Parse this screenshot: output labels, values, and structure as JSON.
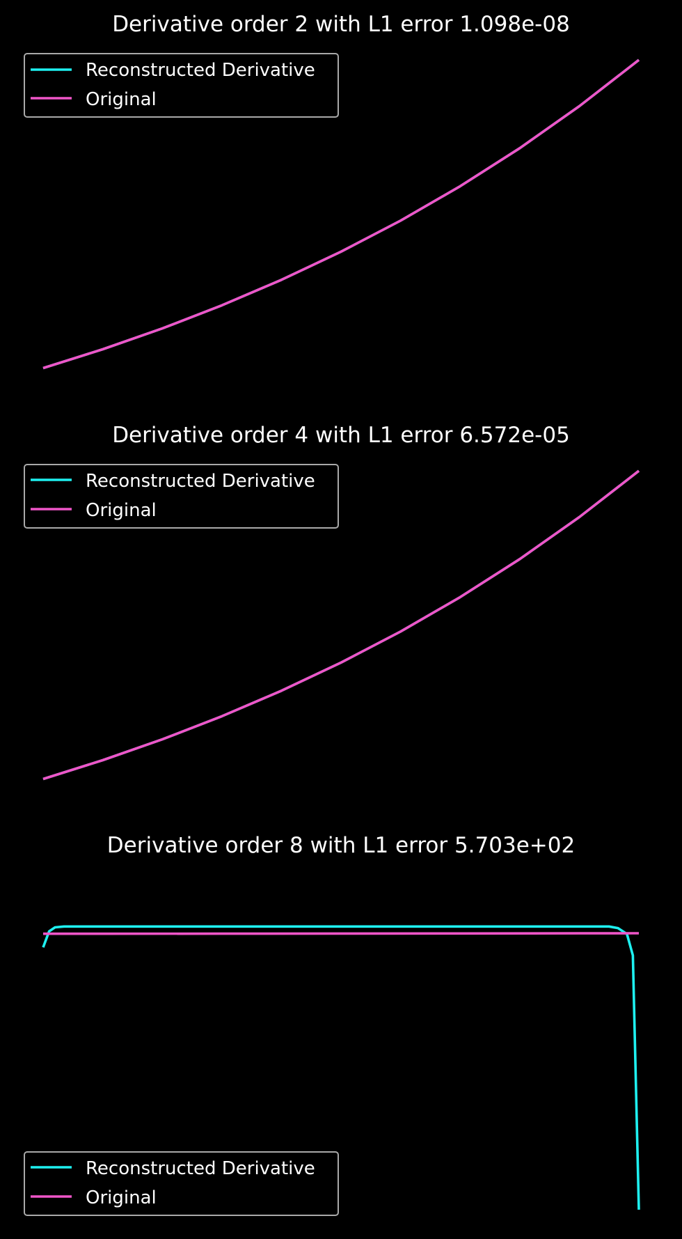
{
  "colors": {
    "background": "#000000",
    "reconstructed": "#1ef0f0",
    "original": "#ef55c8",
    "text": "#ffffff",
    "legend_border": "#a9a9a9"
  },
  "chart_data": [
    {
      "type": "line",
      "title": "Derivative order 2 with L1 error 1.098e-08",
      "xlabel": "",
      "ylabel": "",
      "axes_visible": false,
      "grid": false,
      "legend_position": "top-left",
      "xlim": [
        0,
        1
      ],
      "ylim": [
        0.8,
        2.8
      ],
      "x": [
        0,
        0.1,
        0.2,
        0.3,
        0.4,
        0.5,
        0.6,
        0.7,
        0.8,
        0.9,
        1.0
      ],
      "series": [
        {
          "name": "Reconstructed Derivative",
          "color": "#1ef0f0",
          "values": [
            1.0,
            1.105,
            1.221,
            1.35,
            1.492,
            1.649,
            1.822,
            2.014,
            2.226,
            2.46,
            2.718
          ]
        },
        {
          "name": "Original",
          "color": "#ef55c8",
          "values": [
            1.0,
            1.105,
            1.221,
            1.35,
            1.492,
            1.649,
            1.822,
            2.014,
            2.226,
            2.46,
            2.718
          ]
        }
      ]
    },
    {
      "type": "line",
      "title": "Derivative order 4 with L1 error 6.572e-05",
      "xlabel": "",
      "ylabel": "",
      "axes_visible": false,
      "grid": false,
      "legend_position": "top-left",
      "xlim": [
        0,
        1
      ],
      "ylim": [
        0.8,
        2.8
      ],
      "x": [
        0,
        0.1,
        0.2,
        0.3,
        0.4,
        0.5,
        0.6,
        0.7,
        0.8,
        0.9,
        1.0
      ],
      "series": [
        {
          "name": "Reconstructed Derivative",
          "color": "#1ef0f0",
          "values": [
            1.0,
            1.105,
            1.221,
            1.35,
            1.492,
            1.649,
            1.822,
            2.014,
            2.226,
            2.46,
            2.718
          ]
        },
        {
          "name": "Original",
          "color": "#ef55c8",
          "values": [
            1.0,
            1.105,
            1.221,
            1.35,
            1.492,
            1.649,
            1.822,
            2.014,
            2.226,
            2.46,
            2.718
          ]
        }
      ]
    },
    {
      "type": "line",
      "title": "Derivative order 8 with L1 error 5.703e+02",
      "xlabel": "",
      "ylabel": "",
      "axes_visible": false,
      "grid": false,
      "legend_position": "bottom-left",
      "xlim": [
        0,
        1
      ],
      "ylim": [
        -1090,
        250
      ],
      "x": [
        0,
        0.01,
        0.02,
        0.035,
        0.05,
        0.1,
        0.3,
        0.5,
        0.7,
        0.9,
        0.95,
        0.965,
        0.98,
        0.99,
        1.0
      ],
      "series": [
        {
          "name": "Reconstructed Derivative",
          "color": "#1ef0f0",
          "values": [
            -50,
            10,
            25,
            28,
            28,
            28,
            28,
            28,
            28,
            28,
            28,
            22,
            0,
            -80,
            -1030
          ]
        },
        {
          "name": "Original",
          "color": "#ef55c8",
          "values": [
            1.0,
            1.01,
            1.02,
            1.036,
            1.051,
            1.105,
            1.35,
            1.649,
            2.014,
            2.46,
            2.586,
            2.625,
            2.664,
            2.691,
            2.718
          ]
        }
      ]
    }
  ]
}
